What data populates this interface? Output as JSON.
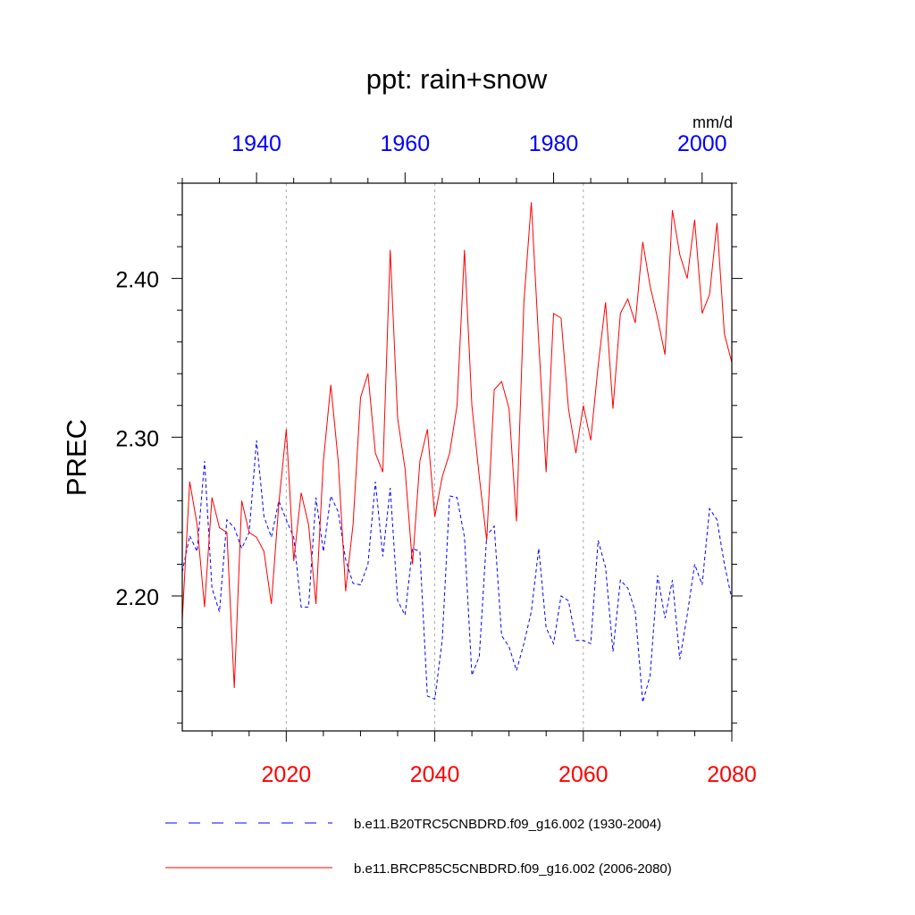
{
  "chart_data": {
    "type": "line",
    "title": "ppt: rain+snow",
    "units": "mm/d",
    "ylabel": "PREC",
    "ylim": [
      2.115,
      2.46
    ],
    "yticks_major": [
      2.2,
      2.3,
      2.4
    ],
    "ytick_labels": [
      "2.20",
      "2.30",
      "2.40"
    ],
    "x_top": {
      "range": [
        1930,
        2004
      ],
      "ticks": [
        1940,
        1960,
        1980,
        2000
      ],
      "color": "#0000ff"
    },
    "x_bottom": {
      "range": [
        2006,
        2080
      ],
      "ticks": [
        2020,
        2040,
        2060,
        2080
      ],
      "color": "#ff0000"
    },
    "series": [
      {
        "name": "b.e11.B20TRC5CNBDRD.f09_g16.002 (1930-2004)",
        "axis": "top",
        "color": "#0000ff",
        "dash": "dashed",
        "x": [
          1930,
          1931,
          1932,
          1933,
          1934,
          1935,
          1936,
          1937,
          1938,
          1939,
          1940,
          1941,
          1942,
          1943,
          1944,
          1945,
          1946,
          1947,
          1948,
          1949,
          1950,
          1951,
          1952,
          1953,
          1954,
          1955,
          1956,
          1957,
          1958,
          1959,
          1960,
          1961,
          1962,
          1963,
          1964,
          1965,
          1966,
          1967,
          1968,
          1969,
          1970,
          1971,
          1972,
          1973,
          1974,
          1975,
          1976,
          1977,
          1978,
          1979,
          1980,
          1981,
          1982,
          1983,
          1984,
          1985,
          1986,
          1987,
          1988,
          1989,
          1990,
          1991,
          1992,
          1993,
          1994,
          1995,
          1996,
          1997,
          1998,
          1999,
          2000,
          2001,
          2002,
          2003,
          2004
        ],
        "values": [
          2.215,
          2.238,
          2.228,
          2.285,
          2.205,
          2.19,
          2.248,
          2.243,
          2.23,
          2.24,
          2.298,
          2.25,
          2.237,
          2.26,
          2.248,
          2.237,
          2.193,
          2.193,
          2.262,
          2.228,
          2.263,
          2.253,
          2.223,
          2.208,
          2.207,
          2.22,
          2.272,
          2.225,
          2.268,
          2.197,
          2.188,
          2.23,
          2.228,
          2.137,
          2.135,
          2.172,
          2.263,
          2.262,
          2.237,
          2.15,
          2.162,
          2.238,
          2.244,
          2.175,
          2.168,
          2.153,
          2.17,
          2.19,
          2.23,
          2.18,
          2.17,
          2.2,
          2.197,
          2.172,
          2.172,
          2.17,
          2.235,
          2.218,
          2.165,
          2.21,
          2.205,
          2.19,
          2.133,
          2.15,
          2.213,
          2.186,
          2.21,
          2.16,
          2.188,
          2.22,
          2.207,
          2.255,
          2.248,
          2.22,
          2.198
        ]
      },
      {
        "name": "b.e11.BRCP85C5CNBDRD.f09_g16.002 (2006-2080)",
        "axis": "bottom",
        "color": "#ff0000",
        "dash": "solid",
        "x": [
          2006,
          2007,
          2008,
          2009,
          2010,
          2011,
          2012,
          2013,
          2014,
          2015,
          2016,
          2017,
          2018,
          2019,
          2020,
          2021,
          2022,
          2023,
          2024,
          2025,
          2026,
          2027,
          2028,
          2029,
          2030,
          2031,
          2032,
          2033,
          2034,
          2035,
          2036,
          2037,
          2038,
          2039,
          2040,
          2041,
          2042,
          2043,
          2044,
          2045,
          2046,
          2047,
          2048,
          2049,
          2050,
          2051,
          2052,
          2053,
          2054,
          2055,
          2056,
          2057,
          2058,
          2059,
          2060,
          2061,
          2062,
          2063,
          2064,
          2065,
          2066,
          2067,
          2068,
          2069,
          2070,
          2071,
          2072,
          2073,
          2074,
          2075,
          2076,
          2077,
          2078,
          2079,
          2080
        ],
        "values": [
          2.185,
          2.272,
          2.245,
          2.193,
          2.262,
          2.243,
          2.24,
          2.142,
          2.26,
          2.24,
          2.237,
          2.228,
          2.195,
          2.258,
          2.305,
          2.222,
          2.265,
          2.245,
          2.195,
          2.285,
          2.333,
          2.285,
          2.203,
          2.245,
          2.325,
          2.34,
          2.29,
          2.278,
          2.418,
          2.312,
          2.28,
          2.22,
          2.285,
          2.305,
          2.25,
          2.275,
          2.29,
          2.32,
          2.418,
          2.32,
          2.275,
          2.235,
          2.33,
          2.335,
          2.318,
          2.247,
          2.385,
          2.448,
          2.36,
          2.278,
          2.378,
          2.375,
          2.318,
          2.29,
          2.32,
          2.298,
          2.345,
          2.385,
          2.318,
          2.378,
          2.387,
          2.372,
          2.423,
          2.395,
          2.375,
          2.352,
          2.443,
          2.415,
          2.4,
          2.437,
          2.378,
          2.39,
          2.435,
          2.365,
          2.347
        ]
      }
    ],
    "vertical_gridlines_bottom_axis": [
      2020,
      2040,
      2060
    ],
    "legend": "bottom"
  }
}
